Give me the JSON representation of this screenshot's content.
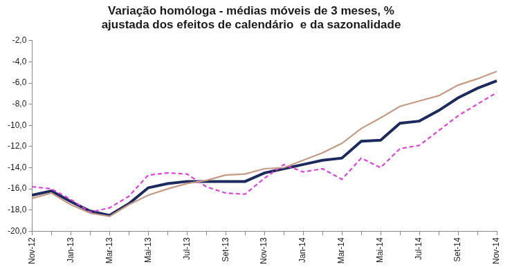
{
  "chart_data": {
    "type": "line",
    "title": [
      "Variação homóloga - médias móveis de 3 meses, %",
      "ajustada dos efeitos de calendário  e da sazonalidade"
    ],
    "categories": [
      "Nov-12",
      null,
      "Jan-13",
      null,
      "Mar-13",
      null,
      "Mai-13",
      null,
      "Jul-13",
      null,
      "Set-13",
      null,
      "Nov-13",
      null,
      "Jan-14",
      null,
      "Mar-14",
      null,
      "Mai-14",
      null,
      "Jul-14",
      null,
      "Set-14",
      null,
      "Nov-14"
    ],
    "series": [
      {
        "color": "#c49a84",
        "line_style": "solid",
        "values": [
          -16.9,
          -16.4,
          -17.5,
          -18.3,
          -18.6,
          -17.5,
          -16.6,
          -16.0,
          -15.5,
          -15.2,
          -14.7,
          -14.6,
          -14.1,
          -14.0,
          -13.3,
          -12.6,
          -11.7,
          -10.3,
          -9.3,
          -8.2,
          -7.7,
          -7.2,
          -6.2,
          -5.6,
          -4.9
        ]
      },
      {
        "color": "#e23fe0",
        "line_style": "dashed",
        "values": [
          -15.8,
          -16.0,
          -17.0,
          -18.2,
          -17.8,
          -16.7,
          -14.7,
          -14.5,
          -14.6,
          -15.8,
          -16.4,
          -16.5,
          -15.0,
          -13.7,
          -14.4,
          -14.1,
          -15.1,
          -13.1,
          -14.0,
          -12.2,
          -11.9,
          -10.5,
          -9.1,
          -8.0,
          -6.9
        ]
      },
      {
        "color": "#1c2a5e",
        "line_style": "solid",
        "values": [
          -16.6,
          -16.2,
          -17.2,
          -18.1,
          -18.5,
          -17.4,
          -15.9,
          -15.5,
          -15.3,
          -15.3,
          -15.3,
          -15.3,
          -14.5,
          -14.1,
          -13.7,
          -13.3,
          -13.1,
          -11.5,
          -11.4,
          -9.8,
          -9.6,
          -8.6,
          -7.4,
          -6.5,
          -5.8
        ]
      }
    ],
    "ylim": [
      -20,
      -2
    ],
    "yticks": [
      {
        "value": -20,
        "label": "-20,0"
      },
      {
        "value": -18,
        "label": "-18,0"
      },
      {
        "value": -16,
        "label": "-16,0"
      },
      {
        "value": -14,
        "label": "-14,0"
      },
      {
        "value": -12,
        "label": "-12,0"
      },
      {
        "value": -10,
        "label": "-10,0"
      },
      {
        "value": -8,
        "label": "-8,0"
      },
      {
        "value": -6,
        "label": "-6,0"
      },
      {
        "value": -4,
        "label": "-4,0"
      },
      {
        "value": -2,
        "label": "-2,0"
      }
    ],
    "grid": false
  }
}
